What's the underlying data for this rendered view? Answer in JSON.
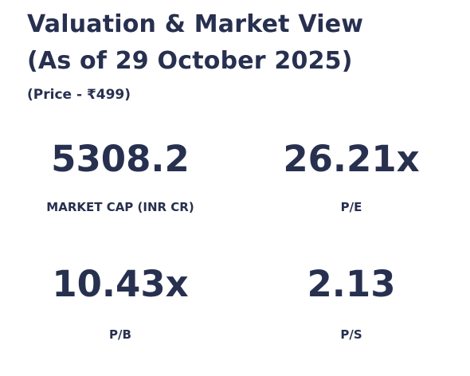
{
  "header": {
    "title_line1": "Valuation & Market View",
    "title_line2": "(As of 29 October 2025)",
    "subtitle": "(Price - ₹499)"
  },
  "metrics": [
    {
      "value": "5308.2",
      "label": "MARKET CAP (INR CR)"
    },
    {
      "value": "26.21x",
      "label": "P/E"
    },
    {
      "value": "10.43x",
      "label": "P/B"
    },
    {
      "value": "2.13",
      "label": "P/S"
    }
  ],
  "colors": {
    "text": "#27304f",
    "background": "#ffffff"
  }
}
